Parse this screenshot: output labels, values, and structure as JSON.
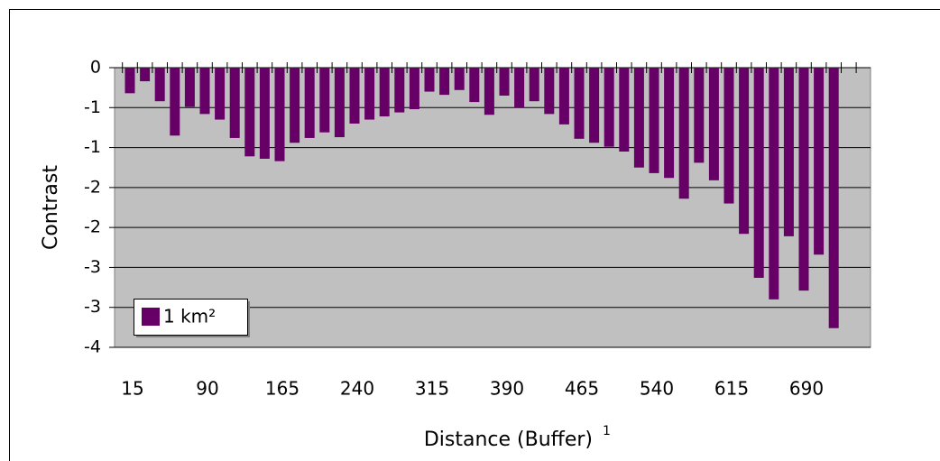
{
  "chart_data": {
    "type": "bar",
    "y_label": "Contrast",
    "x_label": "Distance (Buffer)",
    "x_label_note": "1",
    "categories": [
      "15",
      null,
      null,
      null,
      null,
      "90",
      null,
      null,
      null,
      null,
      "165",
      null,
      null,
      null,
      null,
      "240",
      null,
      null,
      null,
      null,
      "315",
      null,
      null,
      null,
      null,
      "390",
      null,
      null,
      null,
      null,
      "465",
      null,
      null,
      null,
      null,
      "540",
      null,
      null,
      null,
      null,
      "615",
      null,
      null,
      null,
      null,
      "690",
      null,
      null
    ],
    "series": [
      {
        "name": "1 km²",
        "color": "#660066",
        "values": [
          -0.32,
          -0.17,
          -0.42,
          -0.85,
          -0.49,
          -0.58,
          -0.65,
          -0.88,
          -1.11,
          -1.14,
          -1.17,
          -0.94,
          -0.88,
          -0.81,
          -0.87,
          -0.7,
          -0.65,
          -0.61,
          -0.56,
          -0.52,
          -0.3,
          -0.34,
          -0.28,
          -0.43,
          -0.59,
          -0.35,
          -0.5,
          -0.42,
          -0.58,
          -0.71,
          -0.89,
          -0.94,
          -0.99,
          -1.05,
          -1.25,
          -1.32,
          -1.38,
          -1.64,
          -1.19,
          -1.41,
          -1.7,
          -2.08,
          -2.63,
          -2.9,
          -2.11,
          -2.79,
          -2.34,
          -3.26
        ]
      }
    ],
    "ylim": [
      -3.5,
      0
    ],
    "yticks": [
      0,
      {
        "value": -0.5,
        "label": "-1"
      },
      -1,
      {
        "value": -1.5,
        "label": "-2"
      },
      -2,
      {
        "value": -2.5,
        "label": "-3"
      },
      -3,
      {
        "value": -3.5,
        "label": "-4"
      }
    ],
    "grid": true,
    "legend": "lower-left"
  }
}
